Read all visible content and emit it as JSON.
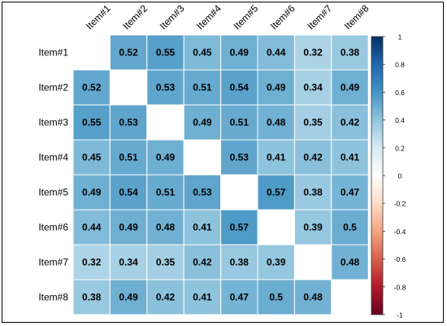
{
  "chart_data": {
    "type": "heatmap",
    "title": "",
    "rows": [
      "Item#1",
      "Item#2",
      "Item#3",
      "Item#4",
      "Item#5",
      "Item#6",
      "Item#7",
      "Item#8"
    ],
    "columns": [
      "Item#1",
      "Item#2",
      "Item#3",
      "Item#4",
      "Item#5",
      "Item#6",
      "Item#7",
      "Item#8"
    ],
    "values": [
      [
        null,
        0.52,
        0.55,
        0.45,
        0.49,
        0.44,
        0.32,
        0.38
      ],
      [
        0.52,
        null,
        0.53,
        0.51,
        0.54,
        0.49,
        0.34,
        0.49
      ],
      [
        0.55,
        0.53,
        null,
        0.49,
        0.51,
        0.48,
        0.35,
        0.42
      ],
      [
        0.45,
        0.51,
        0.49,
        null,
        0.53,
        0.41,
        0.42,
        0.41
      ],
      [
        0.49,
        0.54,
        0.51,
        0.53,
        null,
        0.57,
        0.38,
        0.47
      ],
      [
        0.44,
        0.49,
        0.48,
        0.41,
        0.57,
        null,
        0.39,
        0.5
      ],
      [
        0.32,
        0.34,
        0.35,
        0.42,
        0.38,
        0.39,
        null,
        0.48
      ],
      [
        0.38,
        0.49,
        0.42,
        0.41,
        0.47,
        0.5,
        0.48,
        null
      ]
    ],
    "cell_labels": [
      [
        "",
        "0.52",
        "0.55",
        "0.45",
        "0.49",
        "0.44",
        "0.32",
        "0.38"
      ],
      [
        "0.52",
        "",
        "0.53",
        "0.51",
        "0.54",
        "0.49",
        "0.34",
        "0.49"
      ],
      [
        "0.55",
        "0.53",
        "",
        "0.49",
        "0.51",
        "0.48",
        "0.35",
        "0.42"
      ],
      [
        "0.45",
        "0.51",
        "0.49",
        "",
        "0.53",
        "0.41",
        "0.42",
        "0.41"
      ],
      [
        "0.49",
        "0.54",
        "0.51",
        "0.53",
        "",
        "0.57",
        "0.38",
        "0.47"
      ],
      [
        "0.44",
        "0.49",
        "0.48",
        "0.41",
        "0.57",
        "",
        "0.39",
        "0.5"
      ],
      [
        "0.32",
        "0.34",
        "0.35",
        "0.42",
        "0.38",
        "0.39",
        "",
        "0.48"
      ],
      [
        "0.38",
        "0.49",
        "0.42",
        "0.41",
        "0.47",
        "0.5",
        "0.48",
        ""
      ]
    ],
    "colorbar": {
      "range": [
        -1,
        1
      ],
      "ticks": [
        1,
        0.8,
        0.6,
        0.4,
        0.2,
        0,
        -0.2,
        -0.4,
        -0.6,
        -0.8,
        -1
      ],
      "tick_labels": [
        "1",
        "0.8",
        "0.6",
        "0.4",
        "0.2",
        "0",
        "-0.2",
        "-0.4",
        "-0.6",
        "-0.8",
        "-1"
      ],
      "colors": {
        "negative": "#67001f",
        "zero": "#ffffff",
        "positive": "#053061"
      }
    },
    "diagonal": "blank",
    "grid": true
  }
}
